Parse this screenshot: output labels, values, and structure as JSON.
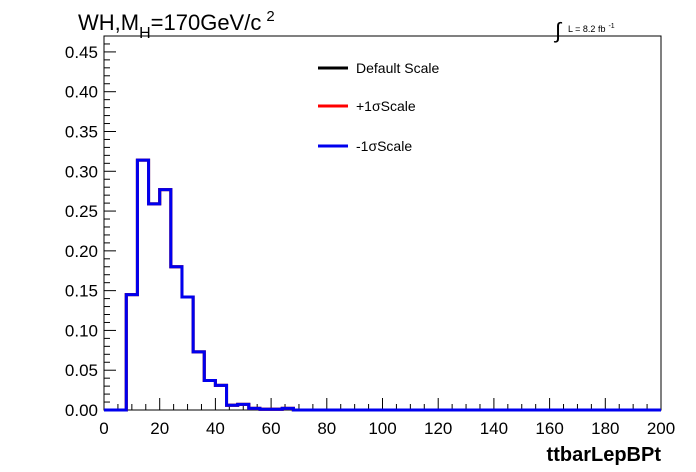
{
  "title": {
    "main": "WH,M",
    "sub": "H",
    "rest": "=170GeV/c",
    "sup": "2"
  },
  "lumi": {
    "integral": "∫",
    "text": "L = 8.2 fb",
    "sup": "-1"
  },
  "colors": {
    "default": "#000000",
    "plus": "#ff0000",
    "minus": "#0000ee"
  },
  "chart_data": {
    "type": "line",
    "xlabel": "ttbarLepBPt",
    "ylabel": "",
    "xlim": [
      0,
      200
    ],
    "ylim": [
      0,
      0.47
    ],
    "x_ticks": [
      0,
      20,
      40,
      60,
      80,
      100,
      120,
      140,
      160,
      180,
      200
    ],
    "y_ticks": [
      0.0,
      0.05,
      0.1,
      0.15,
      0.2,
      0.25,
      0.3,
      0.35,
      0.4,
      0.45
    ],
    "y_tick_labels": [
      "0.00",
      "0.05",
      "0.10",
      "0.15",
      "0.20",
      "0.25",
      "0.30",
      "0.35",
      "0.40",
      "0.45"
    ],
    "bin_width": 4,
    "bins": [
      0,
      4,
      8,
      12,
      16,
      20,
      24,
      28,
      32,
      36,
      40,
      44,
      48,
      52,
      56,
      60,
      64,
      68,
      72,
      76,
      80,
      84,
      88,
      92,
      96,
      100,
      104,
      108,
      112,
      116,
      120,
      124,
      128,
      132,
      136,
      140,
      144,
      148,
      152,
      156,
      160,
      164,
      168,
      172,
      176,
      180,
      184,
      188,
      192,
      196
    ],
    "legend_position": "top-right",
    "series": [
      {
        "name": "Default Scale",
        "color": "#000000",
        "values": [
          0,
          0,
          0.145,
          0.314,
          0.259,
          0.277,
          0.18,
          0.142,
          0.073,
          0.037,
          0.031,
          0.006,
          0.007,
          0.002,
          0.001,
          0.001,
          0.002,
          0,
          0,
          0,
          0,
          0,
          0,
          0,
          0,
          0,
          0,
          0,
          0,
          0,
          0,
          0,
          0,
          0,
          0,
          0,
          0,
          0,
          0,
          0,
          0,
          0,
          0,
          0,
          0,
          0,
          0,
          0,
          0,
          0
        ]
      },
      {
        "name": "+1σScale",
        "color": "#ff0000",
        "values": [
          0,
          0,
          0.145,
          0.314,
          0.259,
          0.277,
          0.18,
          0.142,
          0.073,
          0.037,
          0.031,
          0.006,
          0.007,
          0.002,
          0.001,
          0.001,
          0.002,
          0,
          0,
          0,
          0,
          0,
          0,
          0,
          0,
          0,
          0,
          0,
          0,
          0,
          0,
          0,
          0,
          0,
          0,
          0,
          0,
          0,
          0,
          0,
          0,
          0,
          0,
          0,
          0,
          0,
          0,
          0,
          0,
          0
        ]
      },
      {
        "name": "-1σScale",
        "color": "#0000ee",
        "values": [
          0,
          0,
          0.145,
          0.314,
          0.259,
          0.277,
          0.18,
          0.142,
          0.073,
          0.037,
          0.031,
          0.006,
          0.007,
          0.002,
          0.001,
          0.001,
          0.002,
          0,
          0,
          0,
          0,
          0,
          0,
          0,
          0,
          0,
          0,
          0,
          0,
          0,
          0,
          0,
          0,
          0,
          0,
          0,
          0,
          0,
          0,
          0,
          0,
          0,
          0,
          0,
          0,
          0,
          0,
          0,
          0,
          0
        ]
      }
    ]
  }
}
